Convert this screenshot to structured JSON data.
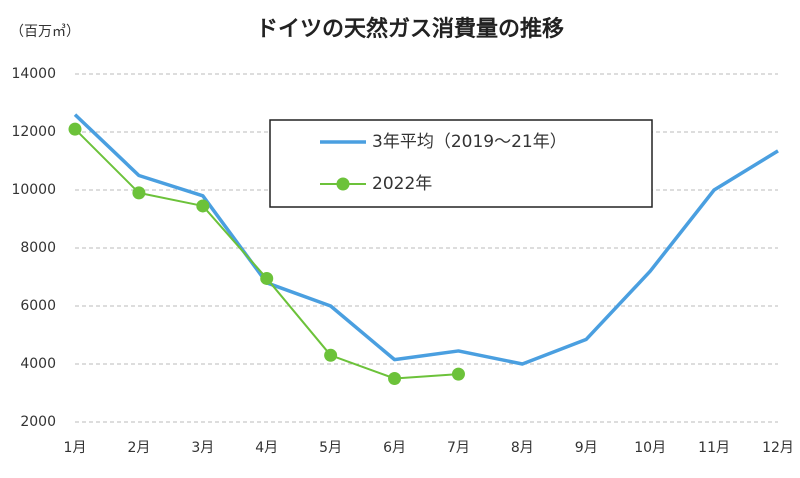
{
  "chart_data": {
    "type": "line",
    "title": "ドイツの天然ガス消費量の推移",
    "y_label": "（百万㎥）",
    "categories": [
      "1月",
      "2月",
      "3月",
      "4月",
      "5月",
      "6月",
      "7月",
      "8月",
      "9月",
      "10月",
      "11月",
      "12月"
    ],
    "series": [
      {
        "name": "3年平均（2019～21年）",
        "color": "#4a9fe0",
        "values": [
          12600,
          10500,
          9800,
          6800,
          6000,
          4150,
          4450,
          4000,
          4850,
          7200,
          10000,
          11350
        ]
      },
      {
        "name": "2022年",
        "color": "#6cc23a",
        "values": [
          12100,
          9900,
          9450,
          6950,
          4300,
          3500,
          3650,
          null,
          null,
          null,
          null,
          null
        ]
      }
    ],
    "ylim": [
      2000,
      14000
    ],
    "yticks": [
      2000,
      4000,
      6000,
      8000,
      10000,
      12000,
      14000
    ],
    "grid": true
  }
}
